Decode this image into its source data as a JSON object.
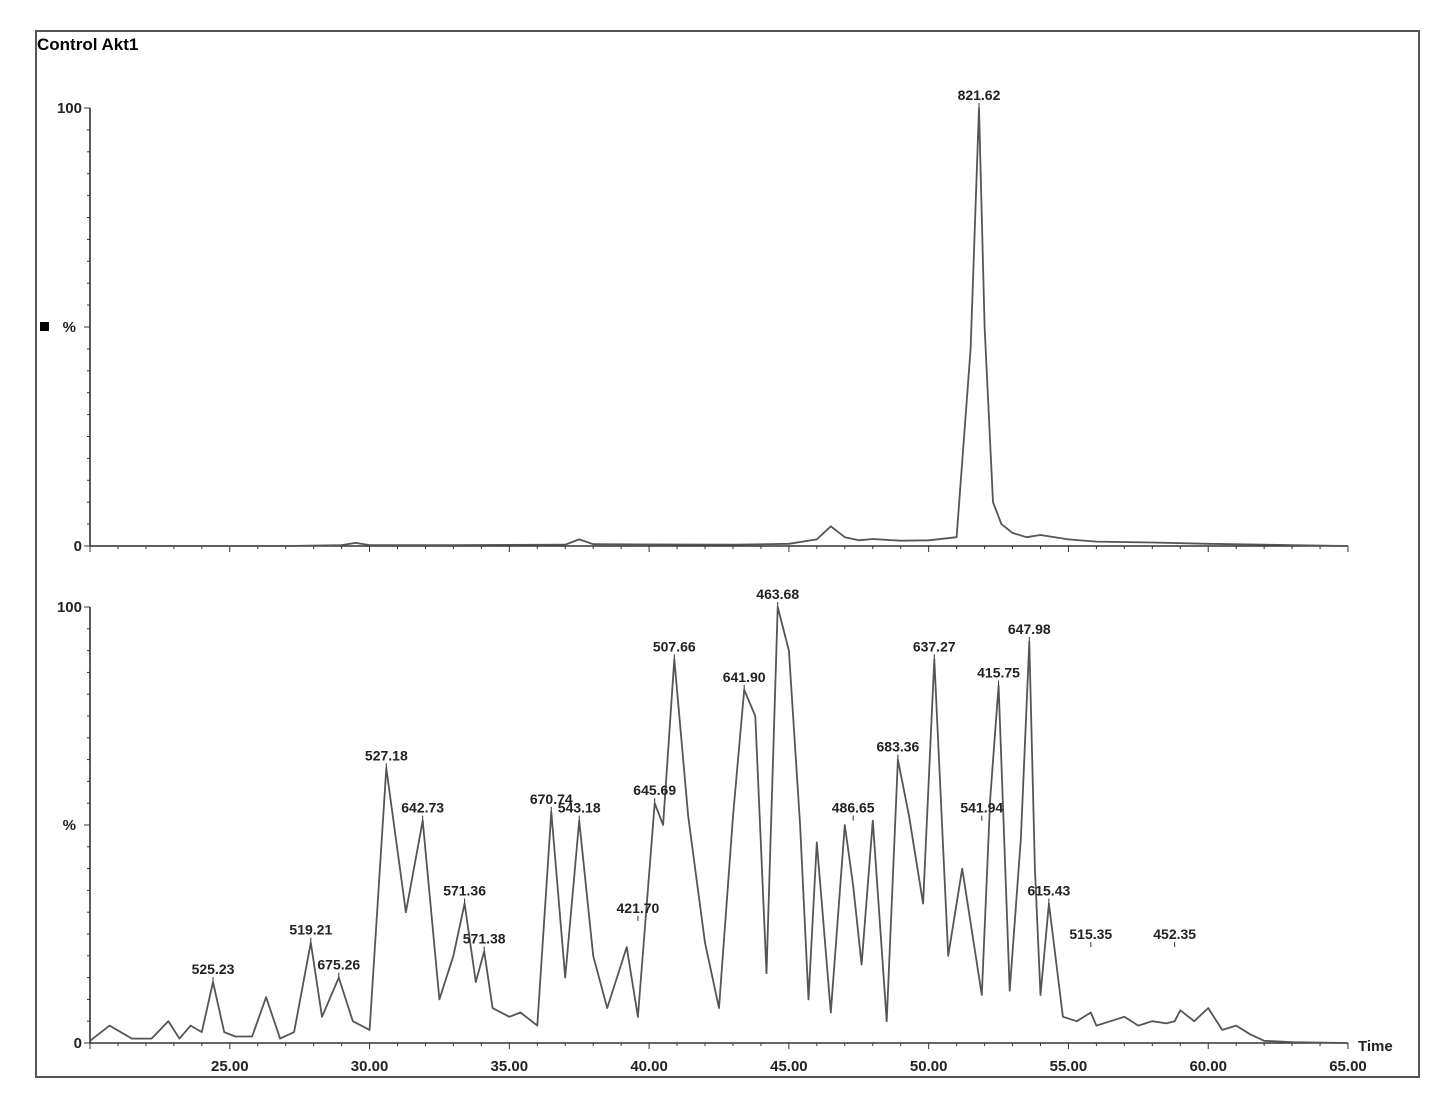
{
  "chart_data": {
    "type": "line",
    "title": "Control Akt1",
    "xlabel": "Time",
    "xlim": [
      20.0,
      65.0
    ],
    "x_ticks": [
      "25.00",
      "30.00",
      "35.00",
      "40.00",
      "45.00",
      "50.00",
      "55.00",
      "60.00",
      "65.00"
    ],
    "colors": {
      "trace": "#555555",
      "axis": "#333333",
      "frame": "#555555"
    },
    "panels": [
      {
        "ylabel": "%",
        "ylim": [
          0,
          100
        ],
        "y_ticks": [
          "0",
          "100"
        ],
        "x": [
          20.0,
          24.0,
          27.0,
          29.0,
          29.5,
          30.0,
          33.0,
          37.0,
          37.5,
          38.0,
          43.0,
          45.0,
          46.0,
          46.5,
          47.0,
          47.5,
          48.0,
          49.0,
          50.0,
          51.0,
          51.5,
          51.8,
          52.0,
          52.3,
          52.6,
          53.0,
          53.5,
          54.0,
          55.0,
          56.0,
          58.0,
          60.0,
          63.0,
          65.0
        ],
        "y": [
          0,
          0,
          0,
          0.2,
          0.7,
          0.2,
          0.2,
          0.3,
          1.5,
          0.4,
          0.3,
          0.5,
          1.5,
          4.5,
          2.0,
          1.3,
          1.6,
          1.2,
          1.3,
          2.0,
          45.0,
          100.0,
          50.0,
          10.0,
          5.0,
          3.0,
          2.0,
          2.5,
          1.5,
          1.0,
          0.8,
          0.5,
          0.2,
          0.0
        ],
        "peak_labels": [
          {
            "x": 51.8,
            "y": 100,
            "text": "821.62"
          }
        ]
      },
      {
        "ylabel": "%",
        "ylim": [
          0,
          100
        ],
        "y_ticks": [
          "0",
          "100"
        ],
        "x": [
          20.0,
          20.7,
          21.5,
          22.2,
          22.8,
          23.2,
          23.6,
          24.0,
          24.4,
          24.8,
          25.2,
          25.8,
          26.3,
          26.8,
          27.3,
          27.9,
          28.3,
          28.9,
          29.4,
          30.0,
          30.6,
          31.3,
          31.9,
          32.5,
          33.0,
          33.4,
          33.8,
          34.1,
          34.4,
          35.0,
          35.4,
          36.0,
          36.5,
          37.0,
          37.5,
          38.0,
          38.5,
          39.2,
          39.6,
          40.2,
          40.5,
          40.9,
          41.4,
          42.0,
          42.5,
          43.0,
          43.4,
          43.8,
          44.2,
          44.6,
          45.0,
          45.4,
          45.7,
          46.0,
          46.5,
          47.0,
          47.3,
          47.6,
          48.0,
          48.5,
          48.9,
          49.3,
          49.8,
          50.2,
          50.7,
          51.2,
          51.9,
          52.2,
          52.5,
          52.9,
          53.3,
          53.6,
          53.8,
          54.0,
          54.3,
          54.8,
          55.3,
          55.8,
          56.0,
          56.5,
          57.0,
          57.5,
          58.0,
          58.5,
          58.8,
          59.0,
          59.5,
          60.0,
          60.5,
          61.0,
          61.5,
          62.0,
          63.0,
          65.0
        ],
        "y": [
          0.5,
          4.0,
          1.0,
          1.0,
          5.0,
          1.0,
          4.0,
          2.5,
          14.0,
          2.5,
          1.5,
          1.5,
          10.5,
          1.0,
          2.5,
          23.0,
          6.0,
          15.0,
          5.0,
          3.0,
          63.0,
          30.0,
          51.0,
          10.0,
          20.0,
          32.0,
          14.0,
          21.0,
          8.0,
          6.0,
          7.0,
          4.0,
          53.0,
          15.0,
          51.0,
          20.0,
          8.0,
          22.0,
          6.0,
          55.0,
          50.0,
          88.0,
          52.0,
          23.0,
          8.0,
          52.0,
          81.0,
          75.0,
          16.0,
          100.0,
          90.0,
          50.0,
          10.0,
          46.0,
          7.0,
          50.0,
          36.0,
          18.0,
          51.0,
          5.0,
          65.0,
          52.0,
          32.0,
          88.0,
          20.0,
          40.0,
          11.0,
          56.0,
          82.0,
          12.0,
          47.0,
          92.0,
          40.0,
          11.0,
          32.0,
          6.0,
          5.0,
          7.0,
          4.0,
          5.0,
          6.0,
          4.0,
          5.0,
          4.5,
          5.0,
          7.5,
          5.0,
          8.0,
          3.0,
          4.0,
          2.0,
          0.5,
          0.2,
          0.0
        ],
        "peak_labels": [
          {
            "x": 24.4,
            "y": 14,
            "text": "525.23"
          },
          {
            "x": 27.9,
            "y": 23,
            "text": "519.21"
          },
          {
            "x": 28.9,
            "y": 15,
            "text": "675.26"
          },
          {
            "x": 30.6,
            "y": 63,
            "text": "527.18"
          },
          {
            "x": 31.9,
            "y": 51,
            "text": "642.73"
          },
          {
            "x": 33.4,
            "y": 32,
            "text": "571.36"
          },
          {
            "x": 34.1,
            "y": 21,
            "text": "571.38"
          },
          {
            "x": 36.5,
            "y": 53,
            "text": "670.74"
          },
          {
            "x": 37.5,
            "y": 51,
            "text": "543.18"
          },
          {
            "x": 39.6,
            "y": 28,
            "text": "421.70"
          },
          {
            "x": 40.2,
            "y": 55,
            "text": "645.69"
          },
          {
            "x": 40.9,
            "y": 88,
            "text": "507.66"
          },
          {
            "x": 43.4,
            "y": 81,
            "text": "641.90"
          },
          {
            "x": 44.6,
            "y": 100,
            "text": "463.68"
          },
          {
            "x": 47.3,
            "y": 51,
            "text": "486.65"
          },
          {
            "x": 48.9,
            "y": 65,
            "text": "683.36"
          },
          {
            "x": 50.2,
            "y": 88,
            "text": "637.27"
          },
          {
            "x": 51.9,
            "y": 51,
            "text": "541.94"
          },
          {
            "x": 52.5,
            "y": 82,
            "text": "415.75"
          },
          {
            "x": 53.6,
            "y": 92,
            "text": "647.98"
          },
          {
            "x": 54.3,
            "y": 32,
            "text": "615.43"
          },
          {
            "x": 55.8,
            "y": 22,
            "text": "515.35"
          },
          {
            "x": 58.8,
            "y": 22,
            "text": "452.35"
          }
        ]
      }
    ]
  }
}
